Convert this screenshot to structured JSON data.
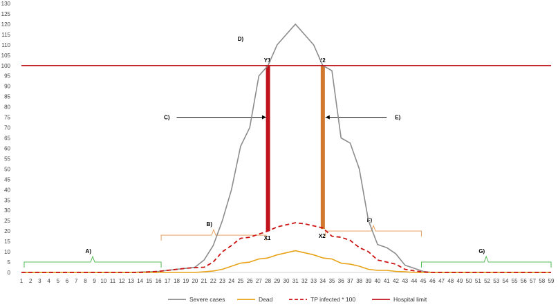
{
  "chart_data": {
    "type": "line",
    "title": "",
    "xlabel": "",
    "ylabel": "",
    "ylim": [
      0,
      130
    ],
    "y_ticks": [
      0,
      5,
      10,
      15,
      20,
      25,
      30,
      35,
      40,
      45,
      50,
      55,
      60,
      65,
      70,
      75,
      80,
      85,
      90,
      95,
      100,
      105,
      110,
      115,
      120,
      125,
      130
    ],
    "x": [
      1,
      2,
      3,
      4,
      5,
      6,
      7,
      8,
      9,
      10,
      11,
      12,
      13,
      14,
      15,
      16,
      17,
      18,
      19,
      20,
      21,
      22,
      23,
      24,
      25,
      26,
      27,
      28,
      29,
      30,
      31,
      32,
      33,
      34,
      35,
      36,
      37,
      38,
      39,
      40,
      41,
      42,
      43,
      44,
      45,
      46,
      47,
      48,
      49,
      50,
      51,
      52,
      53,
      54,
      55,
      56,
      57,
      58,
      59
    ],
    "grid": false,
    "legend_position": "bottom",
    "series": [
      {
        "name": "Severe cases",
        "color": "#8c8c8c",
        "style": "solid",
        "values": [
          0,
          0,
          0,
          0,
          0,
          0,
          0,
          0,
          0,
          0,
          0,
          0,
          0,
          0.2,
          0.3,
          0.5,
          1,
          1.5,
          2,
          2.5,
          6,
          13,
          25,
          40,
          61,
          70,
          95,
          100,
          110,
          115,
          120,
          115,
          110,
          100,
          97.5,
          65,
          62.5,
          50,
          25,
          13.5,
          12,
          9,
          3.5,
          2,
          0.5,
          0,
          0,
          0,
          0,
          0,
          0,
          0,
          0,
          0,
          0,
          0,
          0,
          0,
          0
        ]
      },
      {
        "name": "Dead",
        "color": "#e8a317",
        "style": "solid",
        "values": [
          0,
          0,
          0,
          0,
          0,
          0,
          0,
          0,
          0,
          0,
          0,
          0,
          0,
          0,
          0,
          0,
          0,
          0,
          0,
          0,
          0.3,
          0.7,
          1.5,
          3,
          4.5,
          5,
          6.5,
          7,
          8.5,
          9.5,
          10.5,
          9.5,
          8.5,
          7,
          6.5,
          4.5,
          4,
          3,
          1.5,
          1,
          1,
          0.5,
          0.3,
          0,
          0,
          0,
          0,
          0,
          0,
          0,
          0,
          0,
          0,
          0,
          0,
          0,
          0,
          0,
          0
        ]
      },
      {
        "name": "TP infected * 100",
        "color": "#cc1111",
        "style": "dashed",
        "values": [
          0,
          0,
          0,
          0,
          0,
          0,
          0,
          0,
          0,
          0,
          0,
          0,
          0,
          0,
          0.3,
          0.5,
          1,
          1.5,
          2,
          2.3,
          2.5,
          5,
          10,
          13,
          16.5,
          17,
          18.5,
          20,
          22,
          23,
          24,
          23.5,
          22.5,
          21.5,
          17.5,
          17,
          15.5,
          12,
          10,
          6,
          5,
          4,
          1.5,
          0.8,
          0.2,
          0,
          0,
          0,
          0,
          0,
          0,
          0,
          0,
          0,
          0,
          0,
          0,
          0,
          0
        ]
      },
      {
        "name": "Hospital limit",
        "color": "#c0141c",
        "style": "solid",
        "values": [
          100,
          100,
          100,
          100,
          100,
          100,
          100,
          100,
          100,
          100,
          100,
          100,
          100,
          100,
          100,
          100,
          100,
          100,
          100,
          100,
          100,
          100,
          100,
          100,
          100,
          100,
          100,
          100,
          100,
          100,
          100,
          100,
          100,
          100,
          100,
          100,
          100,
          100,
          100,
          100,
          100,
          100,
          100,
          100,
          100,
          100,
          100,
          100,
          100,
          100,
          100,
          100,
          100,
          100,
          100,
          100,
          100,
          100,
          100
        ]
      }
    ],
    "bars": [
      {
        "label_top": "Y1",
        "label_bottom": "X1",
        "x": 28,
        "from": 20,
        "to": 100,
        "color": "#c0141c"
      },
      {
        "label_top": "Y2",
        "label_bottom": "X2",
        "x": 34,
        "from": 21,
        "to": 100,
        "color": "#d07830"
      }
    ],
    "annotations": [
      {
        "label": "A)",
        "kind": "brace",
        "x_from": 1.3,
        "x_to": 16.3,
        "y": 5,
        "color": "#55bb55"
      },
      {
        "label": "B)",
        "kind": "brace",
        "x_from": 16.3,
        "x_to": 27.8,
        "y": 18,
        "color": "#e8a060"
      },
      {
        "label": "C)",
        "kind": "arrow",
        "x_from": 18,
        "x_to": 27.8,
        "y": 75
      },
      {
        "label": "D)",
        "kind": "text",
        "x": 25,
        "y": 112
      },
      {
        "label": "E)",
        "kind": "arrow",
        "x_from": 41,
        "x_to": 34.3,
        "y": 75
      },
      {
        "label": "F)",
        "kind": "brace",
        "x_from": 34.3,
        "x_to": 44.8,
        "y": 20,
        "color": "#e8a060"
      },
      {
        "label": "G)",
        "kind": "brace",
        "x_from": 44.8,
        "x_to": 59,
        "y": 5,
        "color": "#55bb55"
      }
    ]
  }
}
